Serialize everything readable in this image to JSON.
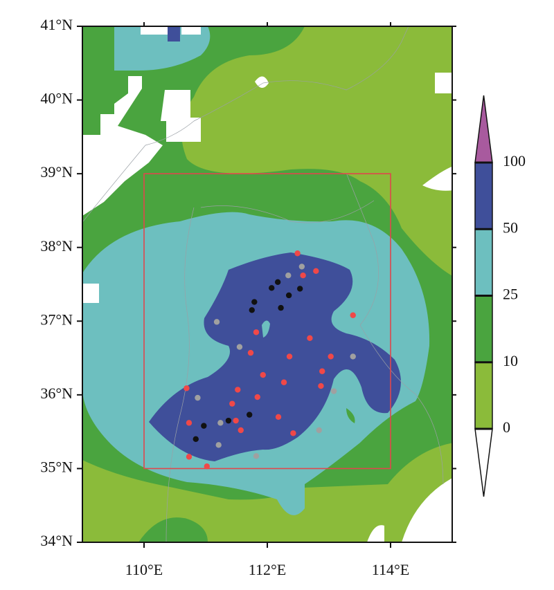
{
  "chart_data": {
    "type": "map",
    "xlim": [
      109,
      115
    ],
    "ylim": [
      34,
      41
    ],
    "xticks": [
      {
        "value": 110,
        "label": "110°E"
      },
      {
        "value": 112,
        "label": "112°E"
      },
      {
        "value": 114,
        "label": "114°E"
      }
    ],
    "yticks": [
      {
        "value": 34,
        "label": "34°N"
      },
      {
        "value": 35,
        "label": "35°N"
      },
      {
        "value": 36,
        "label": "36°N"
      },
      {
        "value": 37,
        "label": "37°N"
      },
      {
        "value": 38,
        "label": "38°N"
      },
      {
        "value": 39,
        "label": "39°N"
      },
      {
        "value": 40,
        "label": "40°N"
      },
      {
        "value": 41,
        "label": "41°N"
      }
    ],
    "box": {
      "lon": [
        110,
        114
      ],
      "lat": [
        35,
        39
      ],
      "color": "#e0474c"
    },
    "colorbar": {
      "levels": [
        0,
        10,
        25,
        50,
        100
      ],
      "colors": [
        "#8bbb3a",
        "#4aa43f",
        "#6dbfbf",
        "#3f4f9a"
      ],
      "over_color": "#a85a9e",
      "under_color": "#ffffff"
    },
    "stations": [
      {
        "color": "#f04848",
        "lon": [
          112.49,
          112.79,
          112.58,
          113.39,
          111.82,
          112.69,
          111.73,
          112.36,
          113.03,
          111.93,
          112.27,
          112.89,
          112.87,
          110.69,
          111.52,
          111.84,
          111.43,
          110.73,
          111.49,
          112.18,
          111.57,
          112.42,
          110.73,
          111.02
        ],
        "lat": [
          37.92,
          37.68,
          37.62,
          37.08,
          36.85,
          36.77,
          36.57,
          36.52,
          36.52,
          36.27,
          36.17,
          36.32,
          36.12,
          36.09,
          36.07,
          35.97,
          35.88,
          35.62,
          35.65,
          35.7,
          35.52,
          35.48,
          35.16,
          35.03
        ]
      },
      {
        "color": "#a0a0a0",
        "lon": [
          112.56,
          112.34,
          111.18,
          111.55,
          113.39,
          113.08,
          110.87,
          111.24,
          111.21,
          112.84,
          111.82
        ],
        "lat": [
          37.74,
          37.62,
          36.99,
          36.65,
          36.52,
          36.05,
          35.96,
          35.62,
          35.32,
          35.52,
          35.17
        ]
      },
      {
        "color": "#111111",
        "lon": [
          112.17,
          112.07,
          111.79,
          111.75,
          112.35,
          112.53,
          112.22,
          111.71,
          111.37,
          110.97,
          110.84
        ],
        "lat": [
          37.53,
          37.45,
          37.26,
          37.15,
          37.35,
          37.44,
          37.18,
          35.73,
          35.65,
          35.58,
          35.4
        ]
      }
    ]
  }
}
